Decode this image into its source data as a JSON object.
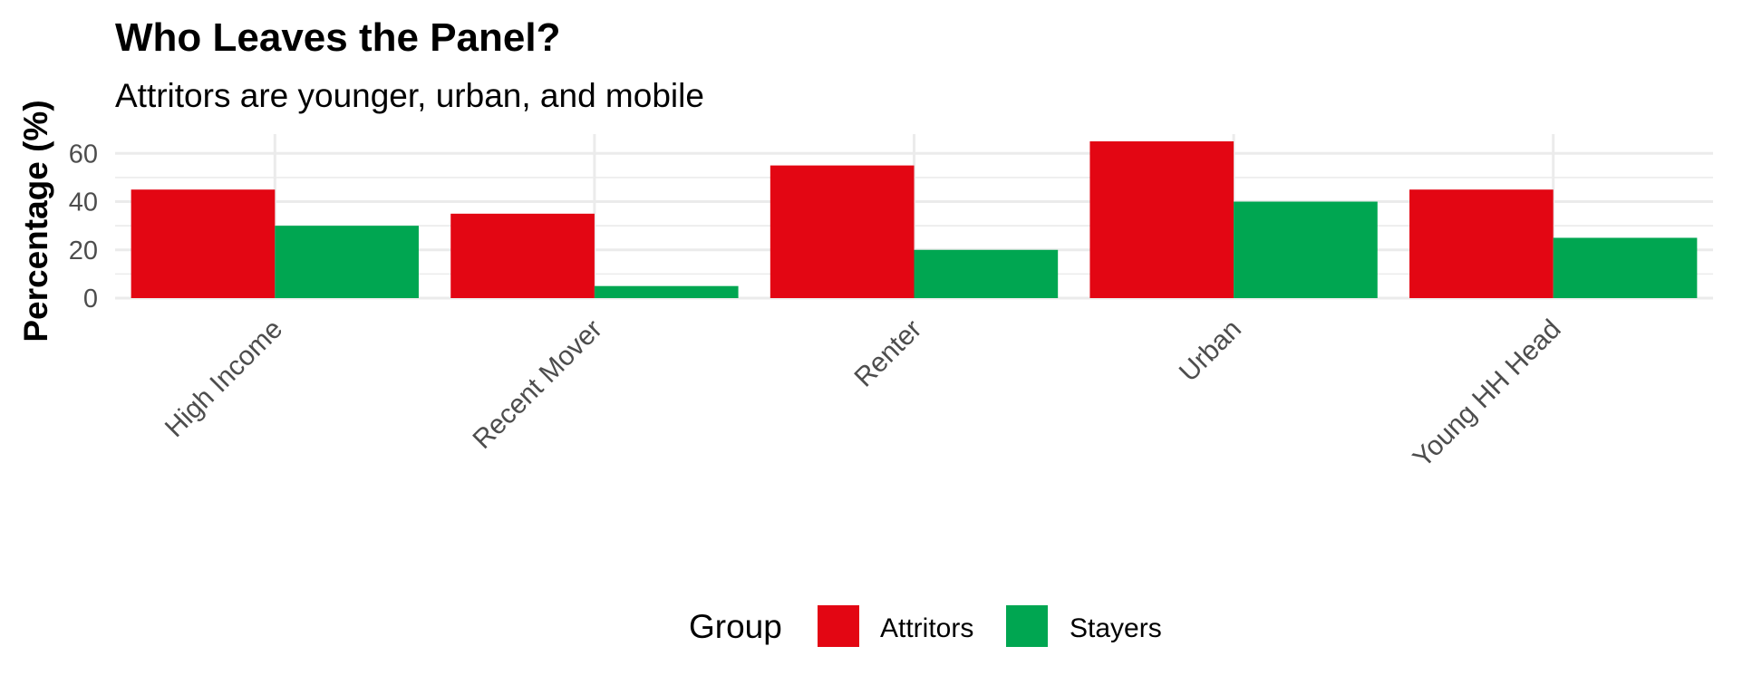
{
  "colors": {
    "Attritors": "#e30613",
    "Stayers": "#00a651",
    "grid": "#ebebeb"
  },
  "chart_data": {
    "type": "bar",
    "title": "Who Leaves the Panel?",
    "subtitle": "Attritors are younger, urban, and mobile",
    "xlabel": "",
    "ylabel": "Percentage (%)",
    "ylim": [
      0,
      68
    ],
    "yticks": [
      "0",
      "20",
      "40",
      "60"
    ],
    "grid": true,
    "categories": [
      "High Income",
      "Recent Mover",
      "Renter",
      "Urban",
      "Young HH Head"
    ],
    "series": [
      {
        "name": "Attritors",
        "values": [
          45,
          35,
          55,
          65,
          45
        ]
      },
      {
        "name": "Stayers",
        "values": [
          30,
          5,
          20,
          40,
          25
        ]
      }
    ],
    "legend": {
      "title": "Group",
      "position": "bottom",
      "entries": [
        "Attritors",
        "Stayers"
      ]
    }
  }
}
